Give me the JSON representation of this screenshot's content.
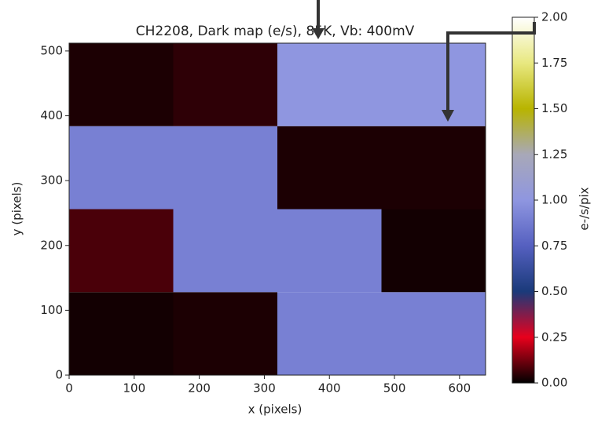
{
  "chart_data": {
    "type": "heatmap",
    "title": "CH2208, Dark map (e/s), 85K, Vb: 400mV",
    "x_label": "x (pixels)",
    "y_label": "y (pixels)",
    "colorbar_label": "e-/s/pix",
    "x_edges": [
      0,
      160,
      320,
      480,
      640
    ],
    "y_edges": [
      0,
      128,
      256,
      384,
      512
    ],
    "values": [
      [
        0.02,
        0.03,
        0.9,
        0.9
      ],
      [
        0.08,
        0.9,
        0.9,
        0.02
      ],
      [
        0.9,
        0.9,
        0.03,
        0.03
      ],
      [
        0.03,
        0.05,
        1.0,
        1.0
      ]
    ],
    "xlim": [
      0,
      640
    ],
    "ylim": [
      0,
      512
    ],
    "xticks": [
      0,
      100,
      200,
      300,
      400,
      500,
      600
    ],
    "yticks": [
      0,
      100,
      200,
      300,
      400,
      500
    ],
    "clim": [
      0,
      2
    ],
    "cticks": [
      {
        "value": 0,
        "label": "0.00"
      },
      {
        "value": 0.25,
        "label": "0.25"
      },
      {
        "value": 0.5,
        "label": "0.50"
      },
      {
        "value": 0.75,
        "label": "0.75"
      },
      {
        "value": 1,
        "label": "1.00"
      },
      {
        "value": 1.25,
        "label": "1.25"
      },
      {
        "value": 1.5,
        "label": "1.50"
      },
      {
        "value": 1.75,
        "label": "1.75"
      },
      {
        "value": 2,
        "label": "2.00"
      }
    ],
    "colormap": [
      {
        "value": 0,
        "color": "#000000"
      },
      {
        "value": 0.25,
        "color": "#e8001c"
      },
      {
        "value": 0.5,
        "color": "#1a3a7a"
      },
      {
        "value": 0.75,
        "color": "#5560c0"
      },
      {
        "value": 1,
        "color": "#8f96e0"
      },
      {
        "value": 1.25,
        "color": "#a8a8b8"
      },
      {
        "value": 1.5,
        "color": "#b8b400"
      },
      {
        "value": 1.75,
        "color": "#e8e880"
      },
      {
        "value": 2,
        "color": "#ffffff"
      }
    ]
  }
}
